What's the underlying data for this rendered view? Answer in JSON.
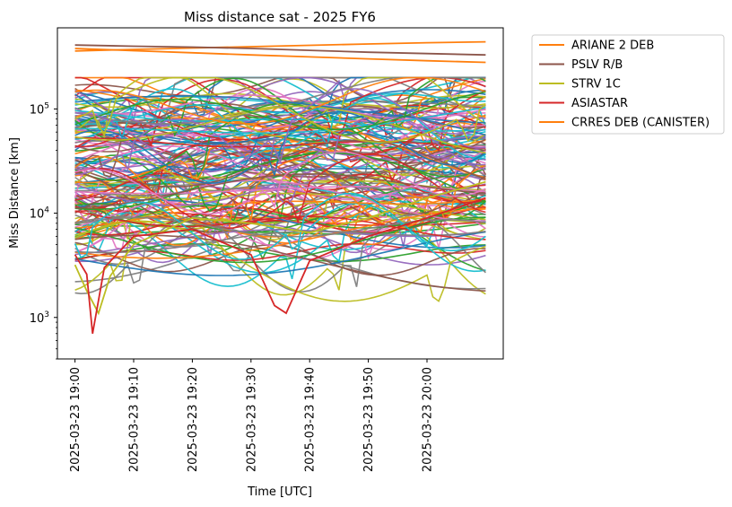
{
  "chart_data": {
    "type": "line",
    "title": "Miss distance sat - 2025 FY6",
    "xlabel": "Time [UTC]",
    "ylabel": "Miss Distance [km]",
    "y_scale": "log",
    "ylim": [
      400,
      600000
    ],
    "xlim": [
      "2025-03-23 18:57",
      "2025-03-23 20:13"
    ],
    "x_tick_labels": [
      "2025-03-23 19:00",
      "2025-03-23 19:10",
      "2025-03-23 19:20",
      "2025-03-23 19:30",
      "2025-03-23 19:40",
      "2025-03-23 19:50",
      "2025-03-23 20:00"
    ],
    "y_tick_labels": [
      {
        "value": 1000,
        "base": "10",
        "exp": "3"
      },
      {
        "value": 10000,
        "base": "10",
        "exp": "4"
      },
      {
        "value": 100000,
        "base": "10",
        "exp": "5"
      }
    ],
    "legend_position": "outside-right",
    "grid": false,
    "series": [
      {
        "name": "ARIANE 2 DEB",
        "color": "#ff7f0e",
        "x": [
          "19:00",
          "19:10",
          "19:20",
          "19:30",
          "19:40",
          "19:50",
          "20:00",
          "20:10"
        ],
        "y": [
          360000,
          372000,
          384000,
          396000,
          408000,
          420000,
          432000,
          440000
        ]
      },
      {
        "name": "PSLV R/B",
        "color": "#8c564b",
        "x": [
          "19:00",
          "19:10",
          "19:20",
          "19:30",
          "19:40",
          "19:50",
          "20:00",
          "20:10"
        ],
        "y": [
          410000,
          400000,
          392000,
          380000,
          365000,
          350000,
          340000,
          330000
        ]
      },
      {
        "name": "STRV 1C",
        "color": "#bcbd22",
        "x": [
          "19:00",
          "19:02",
          "19:04",
          "19:06",
          "19:10",
          "19:20",
          "19:30",
          "19:40",
          "19:50",
          "20:00",
          "20:10"
        ],
        "y": [
          3200,
          1800,
          1100,
          2500,
          5000,
          9000,
          8000,
          6500,
          9000,
          14000,
          20000
        ]
      },
      {
        "name": "ASIASTAR",
        "color": "#d62728",
        "x": [
          "19:00",
          "19:02",
          "19:03",
          "19:05",
          "19:10",
          "19:20",
          "19:30",
          "19:34",
          "19:36",
          "19:40",
          "19:50",
          "20:00",
          "20:10"
        ],
        "y": [
          4000,
          2600,
          700,
          3000,
          6000,
          7000,
          4000,
          1300,
          1100,
          3500,
          6000,
          9000,
          14000
        ]
      },
      {
        "name": "CRRES DEB (CANISTER)",
        "color": "#ff7f0e",
        "x": [
          "19:00",
          "19:10",
          "19:20",
          "19:30",
          "19:40",
          "19:50",
          "20:00",
          "20:10"
        ],
        "y": [
          380000,
          362000,
          346000,
          330000,
          316000,
          302000,
          290000,
          280000
        ]
      }
    ],
    "background_series_colors": [
      "#1f77b4",
      "#ff7f0e",
      "#2ca02c",
      "#d62728",
      "#9467bd",
      "#8c564b",
      "#e377c2",
      "#7f7f7f",
      "#bcbd22",
      "#17becf"
    ]
  }
}
